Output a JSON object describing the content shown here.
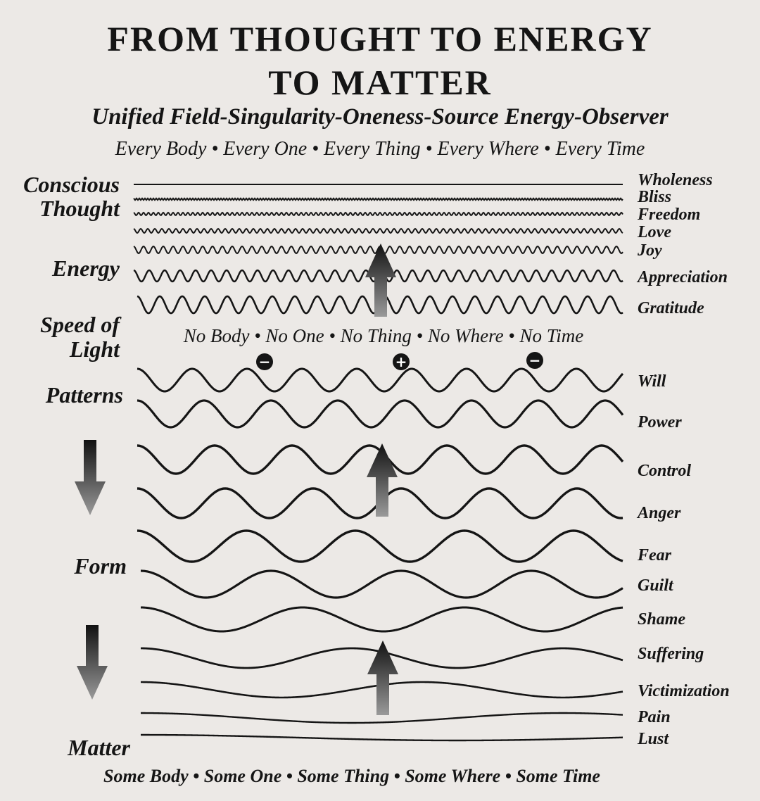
{
  "title": {
    "line1": "FROM THOUGHT TO ENERGY",
    "line2": "TO MATTER"
  },
  "subtitle": "Unified Field-Singularity-Oneness-Source Energy-Observer",
  "top_phrase": "Every Body • Every One • Every Thing • Every Where • Every Time",
  "middle_phrase": "No Body • No One • No Thing • No Where • No Time",
  "bottom_phrase": "Some Body • Some One • Some Thing • Some Where • Some Time",
  "left_labels": {
    "conscious_1": "Conscious",
    "conscious_2": "Thought",
    "energy": "Energy",
    "speed_1": "Speed of",
    "speed_2": "Light",
    "patterns": "Patterns",
    "form": "Form",
    "matter": "Matter"
  },
  "right_labels": {
    "wholeness": "Wholeness",
    "bliss": "Bliss",
    "freedom": "Freedom",
    "love": "Love",
    "joy": "Joy",
    "appreciation": "Appreciation",
    "gratitude": "Gratitude",
    "will": "Will",
    "power": "Power",
    "control": "Control",
    "anger": "Anger",
    "fear": "Fear",
    "guilt": "Guilt",
    "shame": "Shame",
    "suffering": "Suffering",
    "victimization": "Victimization",
    "pain": "Pain",
    "lust": "Lust"
  },
  "charge_symbols": [
    "−",
    "+",
    "−"
  ],
  "colors": {
    "ink": "#151515",
    "paper": "#ece9e6"
  }
}
